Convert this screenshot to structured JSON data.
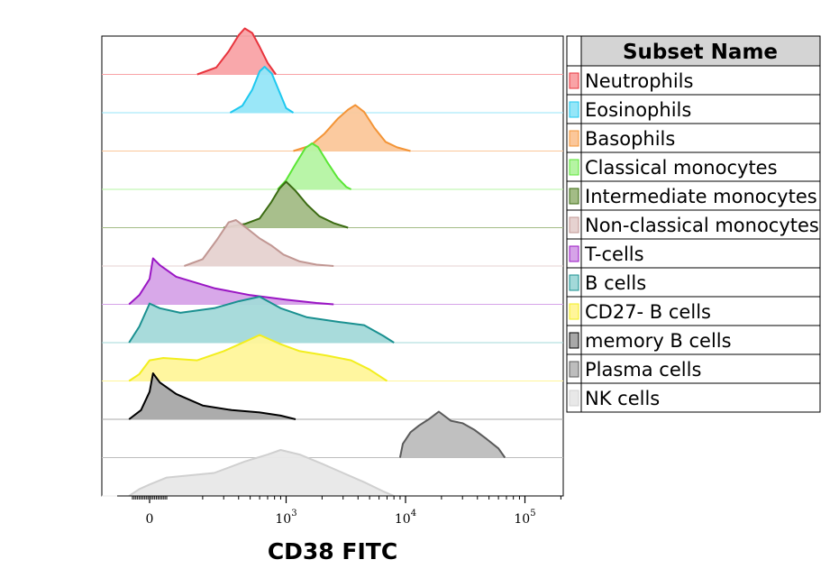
{
  "chart_data": {
    "type": "area",
    "subtype": "stacked-histogram (ridgeline)",
    "xlabel": "CD38 FITC",
    "x_scale": "biexponential (log above ~10^2)",
    "xlim": [
      -200,
      200000
    ],
    "x_ticks": [
      {
        "value": 0,
        "base": "0",
        "exp": ""
      },
      {
        "value": 1000,
        "base": "10",
        "exp": "3"
      },
      {
        "value": 10000,
        "base": "10",
        "exp": "4"
      },
      {
        "value": 100000,
        "base": "10",
        "exp": "5"
      }
    ],
    "legend_title": "Subset Name",
    "series": [
      {
        "name": "Neutrophils",
        "fill": "#f9a3a6",
        "line": "#e8343d",
        "peak": 450,
        "points": [
          [
            180,
            0
          ],
          [
            260,
            0.15
          ],
          [
            330,
            0.5
          ],
          [
            400,
            0.85
          ],
          [
            450,
            1
          ],
          [
            520,
            0.9
          ],
          [
            600,
            0.6
          ],
          [
            700,
            0.25
          ],
          [
            820,
            0
          ]
        ]
      },
      {
        "name": "Eosinophils",
        "fill": "#95e6f8",
        "line": "#1ec8ef",
        "peak": 650,
        "points": [
          [
            340,
            0
          ],
          [
            430,
            0.15
          ],
          [
            520,
            0.5
          ],
          [
            600,
            0.9
          ],
          [
            660,
            1
          ],
          [
            760,
            0.85
          ],
          [
            880,
            0.45
          ],
          [
            1000,
            0.1
          ],
          [
            1150,
            0
          ]
        ]
      },
      {
        "name": "Basophils",
        "fill": "#fbc79a",
        "line": "#f39436",
        "peak": 3500,
        "points": [
          [
            1150,
            0
          ],
          [
            1600,
            0.12
          ],
          [
            2100,
            0.38
          ],
          [
            2700,
            0.7
          ],
          [
            3300,
            0.9
          ],
          [
            3800,
            1
          ],
          [
            4500,
            0.85
          ],
          [
            5500,
            0.5
          ],
          [
            6800,
            0.2
          ],
          [
            8500,
            0.08
          ],
          [
            11000,
            0
          ]
        ]
      },
      {
        "name": "Classical monocytes",
        "fill": "#b5f4a3",
        "line": "#5ae635",
        "peak": 1700,
        "points": [
          [
            850,
            0
          ],
          [
            1000,
            0.2
          ],
          [
            1200,
            0.55
          ],
          [
            1450,
            0.9
          ],
          [
            1650,
            1
          ],
          [
            1850,
            0.92
          ],
          [
            2200,
            0.6
          ],
          [
            2700,
            0.25
          ],
          [
            3200,
            0.05
          ],
          [
            3500,
            0
          ]
        ]
      },
      {
        "name": "Intermediate monocytes",
        "fill": "#a3bc86",
        "line": "#3b6b12",
        "peak": 950,
        "points": [
          [
            300,
            0
          ],
          [
            450,
            0.08
          ],
          [
            600,
            0.2
          ],
          [
            750,
            0.55
          ],
          [
            880,
            0.85
          ],
          [
            1000,
            1
          ],
          [
            1200,
            0.8
          ],
          [
            1500,
            0.5
          ],
          [
            1900,
            0.25
          ],
          [
            2500,
            0.1
          ],
          [
            3300,
            0
          ]
        ]
      },
      {
        "name": "Non-classical monocytes",
        "fill": "#e6d2d0",
        "line": "#c19793",
        "peak": 350,
        "points": [
          [
            140,
            0
          ],
          [
            200,
            0.15
          ],
          [
            260,
            0.55
          ],
          [
            330,
            0.95
          ],
          [
            380,
            1
          ],
          [
            480,
            0.8
          ],
          [
            600,
            0.6
          ],
          [
            750,
            0.45
          ],
          [
            950,
            0.25
          ],
          [
            1300,
            0.1
          ],
          [
            1800,
            0.03
          ],
          [
            2500,
            0
          ]
        ]
      },
      {
        "name": "T-cells",
        "fill": "#d6a3e8",
        "line": "#9a16c4",
        "peak": 20,
        "points": [
          [
            -120,
            0
          ],
          [
            -60,
            0.2
          ],
          [
            0,
            0.55
          ],
          [
            20,
            1
          ],
          [
            60,
            0.85
          ],
          [
            120,
            0.6
          ],
          [
            250,
            0.35
          ],
          [
            500,
            0.2
          ],
          [
            1000,
            0.1
          ],
          [
            1800,
            0.03
          ],
          [
            2500,
            0
          ]
        ]
      },
      {
        "name": "B cells",
        "fill": "#a3d9d9",
        "line": "#1a9090",
        "peak": 600,
        "points": [
          [
            -120,
            0
          ],
          [
            -60,
            0.35
          ],
          [
            0,
            0.85
          ],
          [
            60,
            0.75
          ],
          [
            130,
            0.65
          ],
          [
            250,
            0.75
          ],
          [
            400,
            0.9
          ],
          [
            600,
            1
          ],
          [
            900,
            0.75
          ],
          [
            1500,
            0.55
          ],
          [
            2800,
            0.45
          ],
          [
            4500,
            0.38
          ],
          [
            6500,
            0.15
          ],
          [
            8000,
            0
          ]
        ]
      },
      {
        "name": "CD27- B cells",
        "fill": "#fff59a",
        "line": "#f2ee1e",
        "peak": 600,
        "points": [
          [
            -120,
            0
          ],
          [
            -60,
            0.15
          ],
          [
            0,
            0.45
          ],
          [
            80,
            0.5
          ],
          [
            180,
            0.45
          ],
          [
            300,
            0.65
          ],
          [
            450,
            0.85
          ],
          [
            600,
            1
          ],
          [
            900,
            0.8
          ],
          [
            1300,
            0.65
          ],
          [
            2200,
            0.55
          ],
          [
            3500,
            0.45
          ],
          [
            5000,
            0.25
          ],
          [
            7000,
            0
          ]
        ]
      },
      {
        "name": "memory B cells",
        "fill": "#a8a8a8",
        "line": "#000000",
        "peak": 15,
        "points": [
          [
            -120,
            0
          ],
          [
            -50,
            0.2
          ],
          [
            0,
            0.6
          ],
          [
            20,
            1
          ],
          [
            60,
            0.8
          ],
          [
            120,
            0.55
          ],
          [
            200,
            0.3
          ],
          [
            350,
            0.2
          ],
          [
            600,
            0.15
          ],
          [
            900,
            0.08
          ],
          [
            1200,
            0
          ]
        ]
      },
      {
        "name": "Plasma cells",
        "fill": "#bdbdbd",
        "line": "#5a5a5a",
        "peak": 18000,
        "points": [
          [
            9000,
            0
          ],
          [
            9500,
            0.3
          ],
          [
            11000,
            0.55
          ],
          [
            13000,
            0.7
          ],
          [
            16000,
            0.85
          ],
          [
            19000,
            1
          ],
          [
            24000,
            0.8
          ],
          [
            30000,
            0.75
          ],
          [
            38000,
            0.6
          ],
          [
            48000,
            0.4
          ],
          [
            60000,
            0.2
          ],
          [
            68000,
            0
          ]
        ]
      },
      {
        "name": "NK cells",
        "fill": "#e8e8e8",
        "line": "#d0d0d0",
        "peak": 900,
        "points": [
          [
            -120,
            0
          ],
          [
            -60,
            0.15
          ],
          [
            0,
            0.25
          ],
          [
            100,
            0.4
          ],
          [
            250,
            0.5
          ],
          [
            450,
            0.75
          ],
          [
            700,
            0.9
          ],
          [
            900,
            1
          ],
          [
            1300,
            0.9
          ],
          [
            2000,
            0.7
          ],
          [
            3000,
            0.5
          ],
          [
            4500,
            0.3
          ],
          [
            6500,
            0.1
          ],
          [
            8000,
            0
          ]
        ]
      }
    ]
  }
}
